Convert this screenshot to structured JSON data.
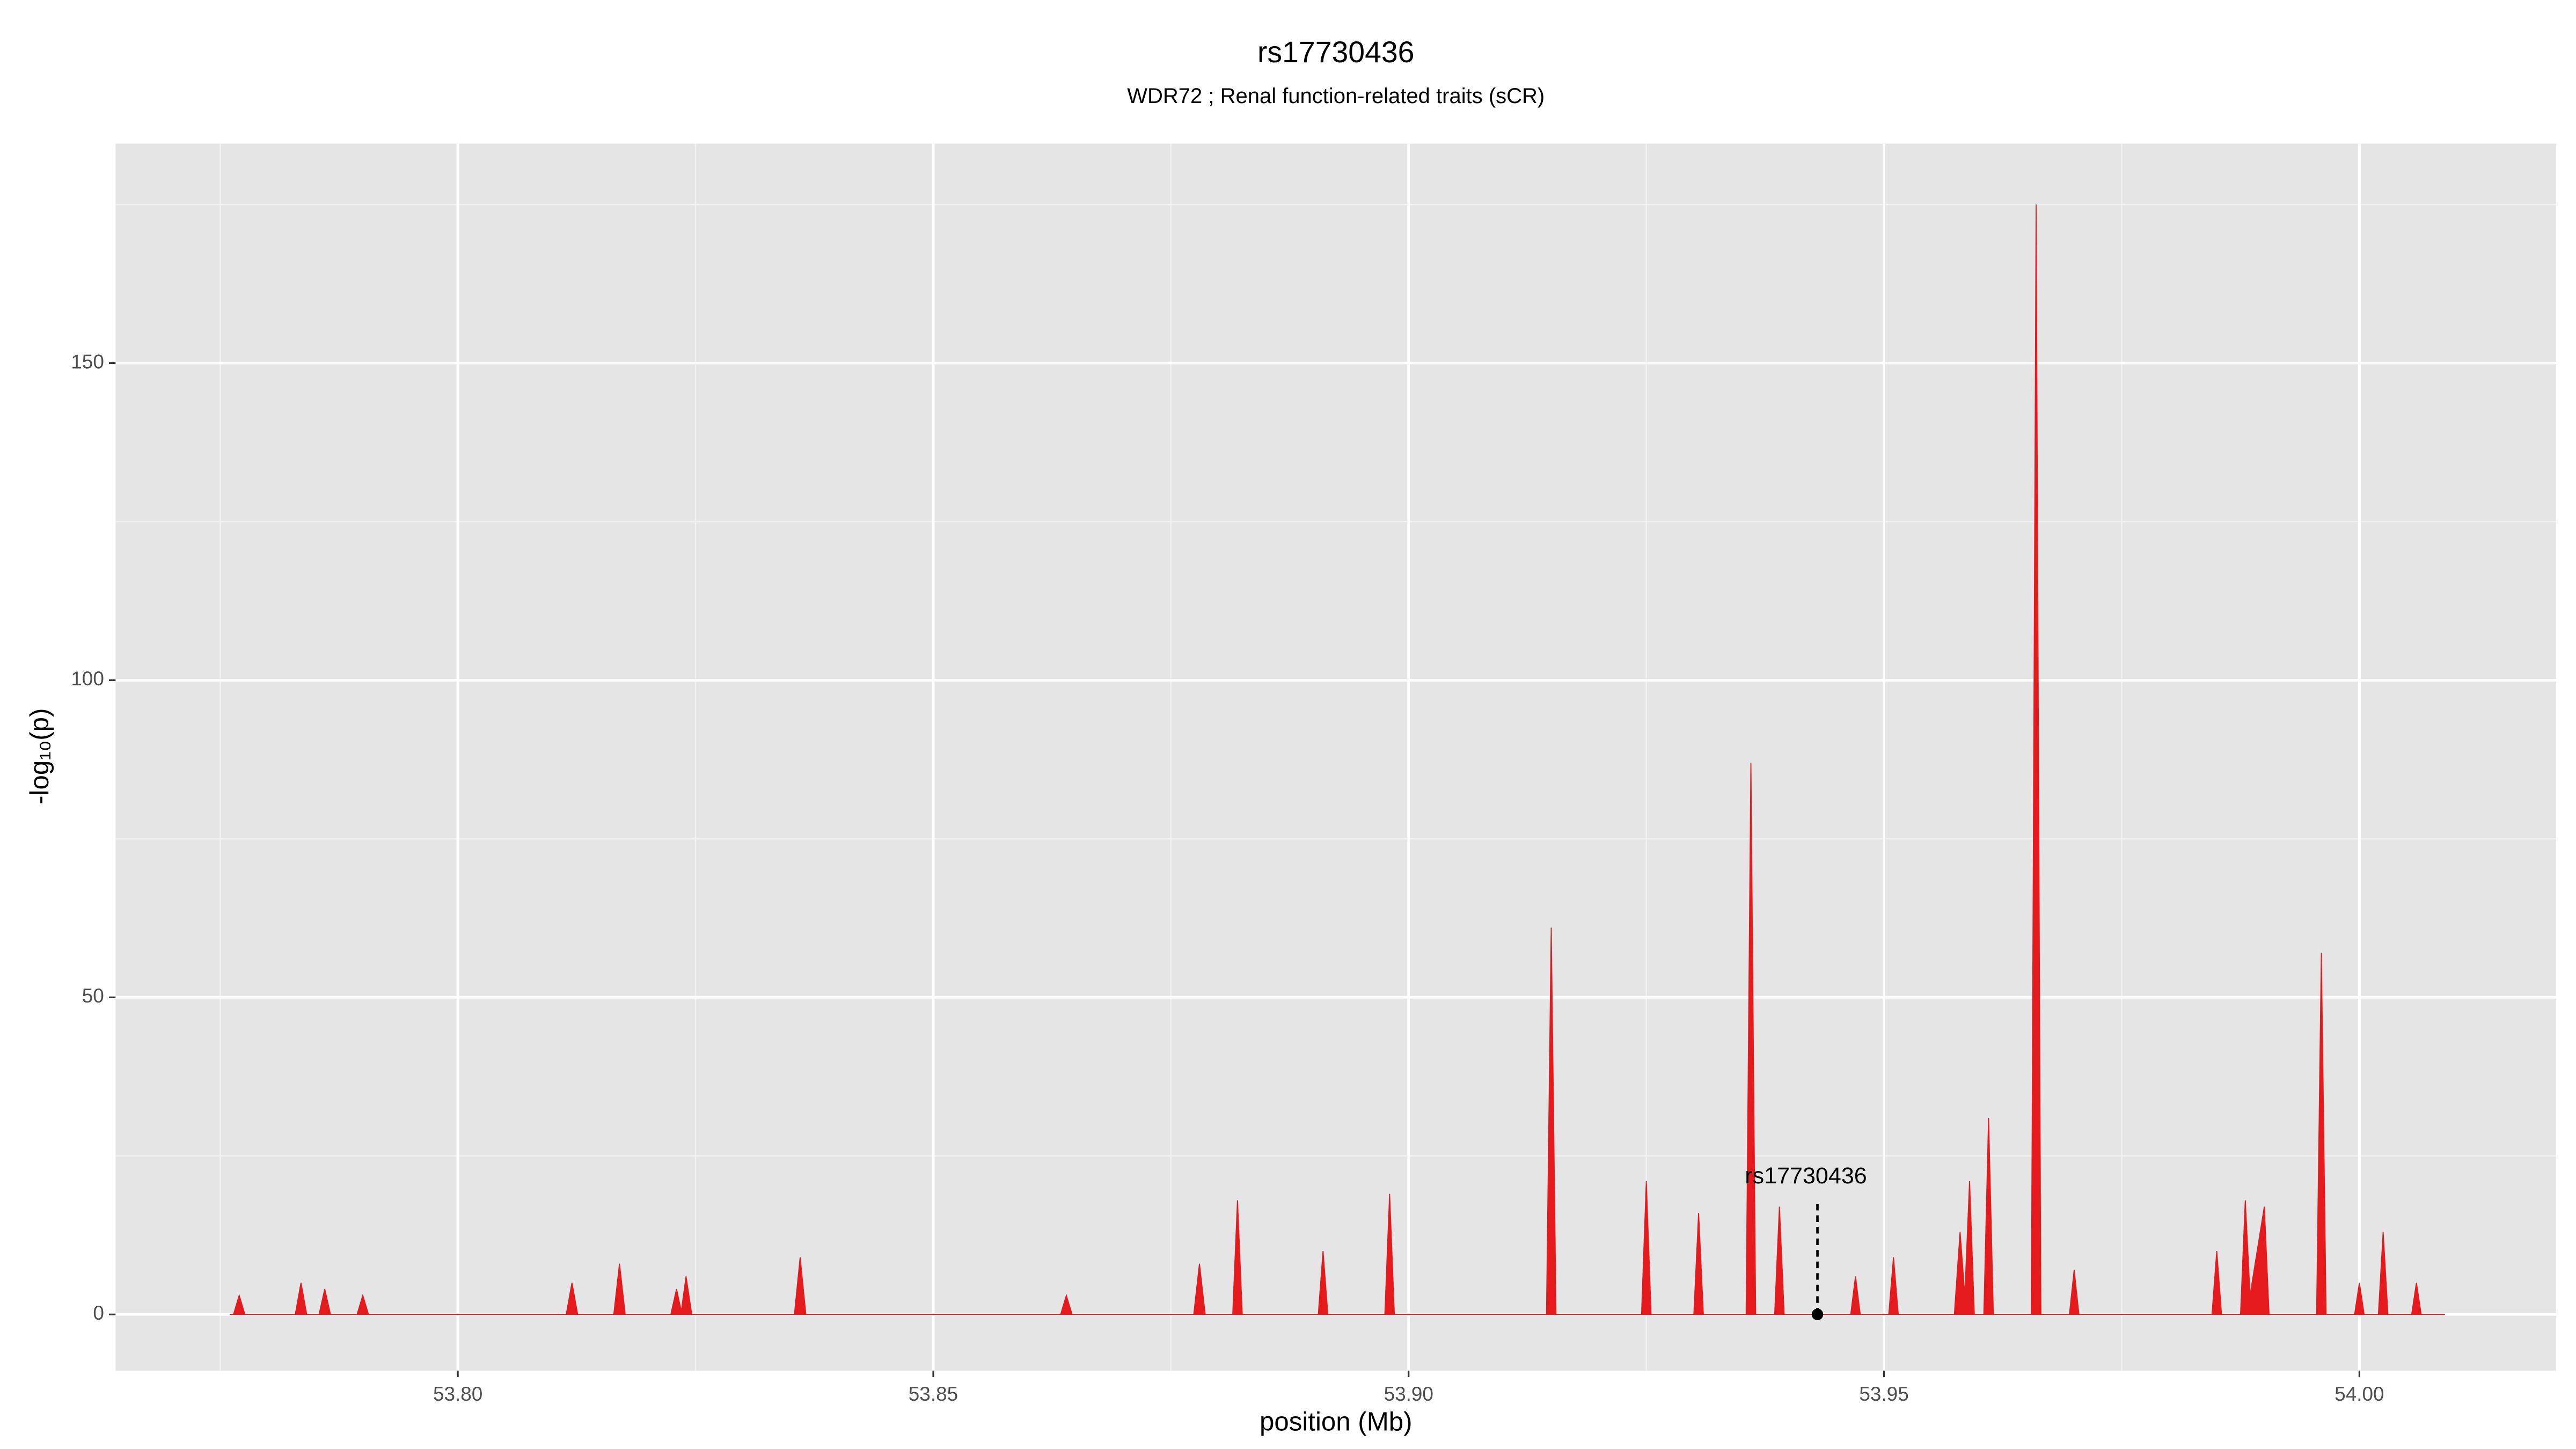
{
  "chart_data": {
    "type": "area",
    "title": "rs17730436",
    "subtitle": "WDR72 ; Renal function-related traits (sCR)",
    "x_label": "position (Mb)",
    "y_label": "-log₁₀(p)",
    "xlim": [
      53.764,
      54.0207
    ],
    "ylim": [
      -8.85,
      184.6
    ],
    "xticks": [
      {
        "value": 53.8,
        "label": "53.80"
      },
      53.85,
      {
        "value": 53.9,
        "label": "53.90"
      },
      53.95,
      {
        "value": 54.0,
        "label": "54.00"
      }
    ],
    "yticks": [
      0,
      50,
      100,
      150
    ],
    "grid": true,
    "series": [
      {
        "color": "#e41a1c",
        "x": [
          53.776,
          53.7764,
          53.777,
          53.7776,
          53.7829,
          53.7835,
          53.7841,
          53.7854,
          53.786,
          53.7866,
          53.7894,
          53.79,
          53.7906,
          53.8114,
          53.812,
          53.8126,
          53.8164,
          53.817,
          53.8176,
          53.8224,
          53.823,
          53.8235,
          53.824,
          53.8246,
          53.8354,
          53.836,
          53.8366,
          53.8634,
          53.864,
          53.8646,
          53.8774,
          53.878,
          53.8786,
          53.8815,
          53.882,
          53.8825,
          53.8905,
          53.891,
          53.8915,
          53.8975,
          53.898,
          53.8985,
          53.9145,
          53.915,
          53.9155,
          53.9245,
          53.925,
          53.9255,
          53.93,
          53.9305,
          53.931,
          53.9355,
          53.936,
          53.9365,
          53.9385,
          53.939,
          53.9395,
          53.9465,
          53.947,
          53.9475,
          53.9505,
          53.951,
          53.9515,
          53.9574,
          53.958,
          53.9585,
          53.959,
          53.9595,
          53.9605,
          53.961,
          53.9615,
          53.9655,
          53.966,
          53.9665,
          53.9695,
          53.97,
          53.9705,
          53.9845,
          53.985,
          53.9855,
          53.9875,
          53.988,
          53.9885,
          53.99,
          53.9905,
          53.9955,
          53.996,
          53.9965,
          53.9995,
          54.0,
          54.0005,
          54.002,
          54.0025,
          54.003,
          54.0055,
          54.006,
          54.0065,
          54.009
        ],
        "values": [
          0,
          0,
          3,
          0,
          0,
          5,
          0,
          0,
          4,
          0,
          0,
          3,
          0,
          0,
          5,
          0,
          0,
          8,
          0,
          0,
          4,
          0.5,
          6,
          0,
          0,
          9,
          0,
          0,
          3,
          0,
          0,
          8,
          0,
          0,
          18,
          0,
          0,
          10,
          0,
          0,
          19,
          0,
          0,
          61,
          0,
          0,
          21,
          0,
          0,
          16,
          0,
          0,
          87,
          0,
          0,
          17,
          0,
          0,
          6,
          0,
          0,
          9,
          0,
          0,
          13,
          3,
          21,
          0,
          0,
          31,
          0,
          0,
          175,
          0,
          0,
          7,
          0,
          0,
          10,
          0,
          0,
          18,
          3,
          17,
          0,
          0,
          57,
          0,
          0,
          5,
          0,
          0,
          13,
          0,
          0,
          5,
          0,
          0
        ]
      }
    ],
    "annotation": {
      "text": "rs17730436",
      "x": 53.943,
      "y": 0
    }
  }
}
